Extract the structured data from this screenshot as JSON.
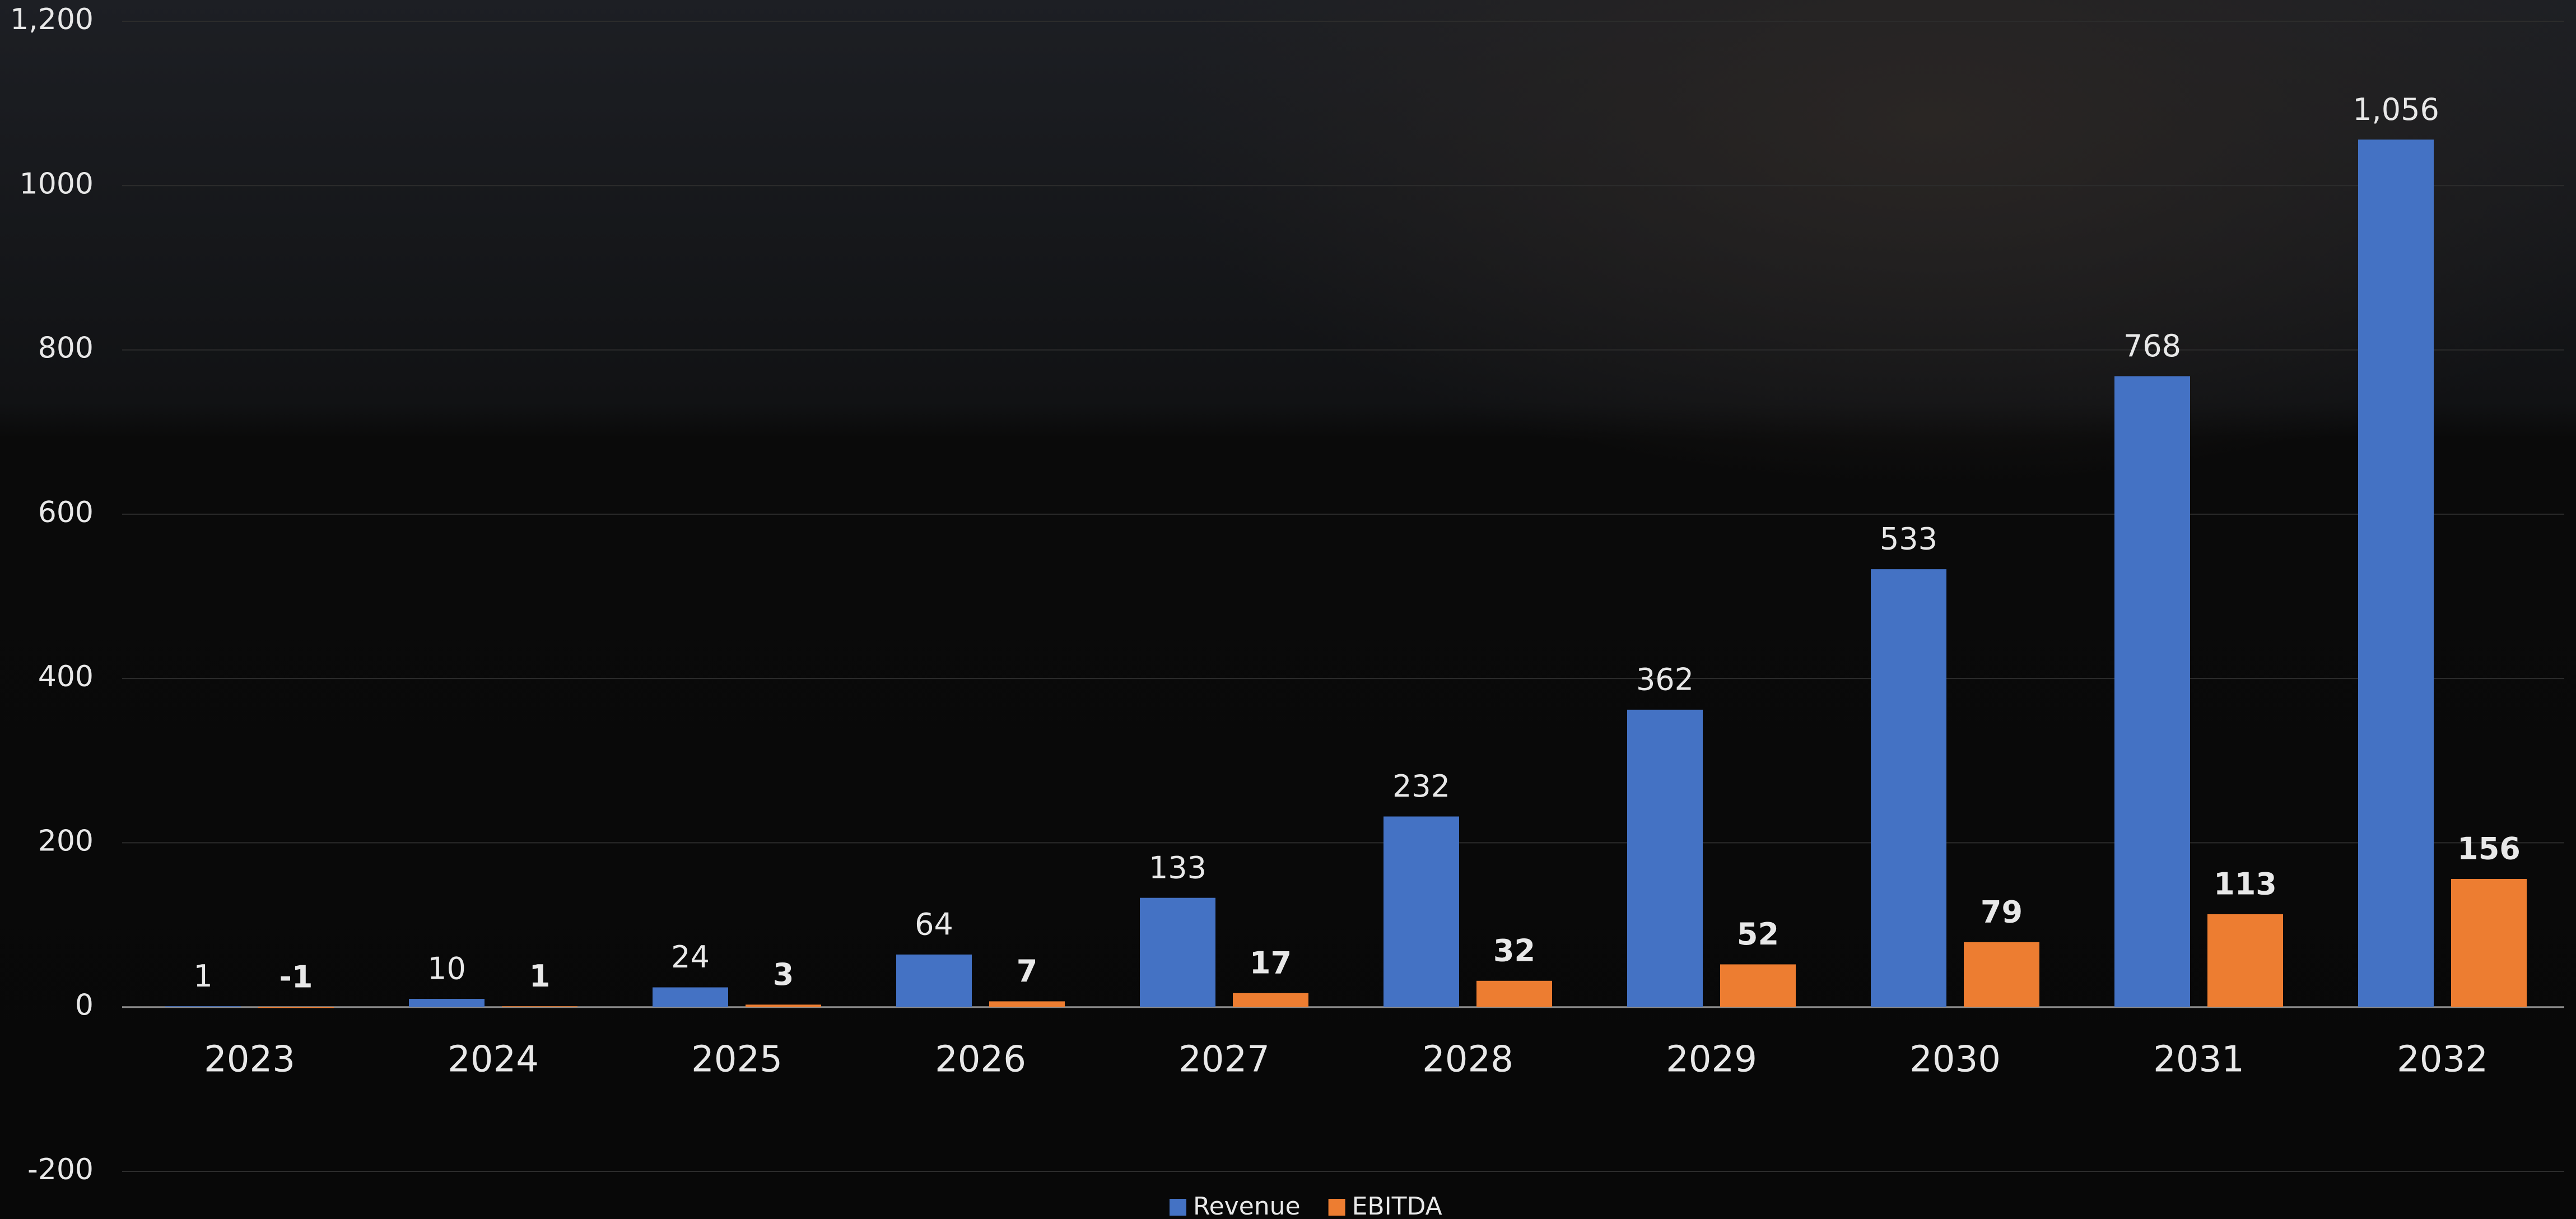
{
  "chart_data": {
    "type": "bar",
    "categories": [
      "2023",
      "2024",
      "2025",
      "2026",
      "2027",
      "2028",
      "2029",
      "2030",
      "2031",
      "2032"
    ],
    "series": [
      {
        "name": "Revenue",
        "color": "#4472c4",
        "values": [
          1,
          10,
          24,
          64,
          133,
          232,
          362,
          533,
          768,
          1056
        ],
        "value_labels": [
          "1",
          "10",
          "24",
          "64",
          "133",
          "232",
          "362",
          "533",
          "768",
          "1,056"
        ]
      },
      {
        "name": "EBITDA",
        "color": "#ed7d31",
        "values": [
          -1,
          1,
          3,
          7,
          17,
          32,
          52,
          79,
          113,
          156
        ]
      }
    ],
    "ylim": [
      -200,
      1200
    ],
    "yticks": [
      -200,
      0,
      200,
      400,
      600,
      800,
      1000,
      {
        "value": 1200,
        "label": "1,200"
      }
    ],
    "grid": true,
    "legend": "bottom"
  }
}
